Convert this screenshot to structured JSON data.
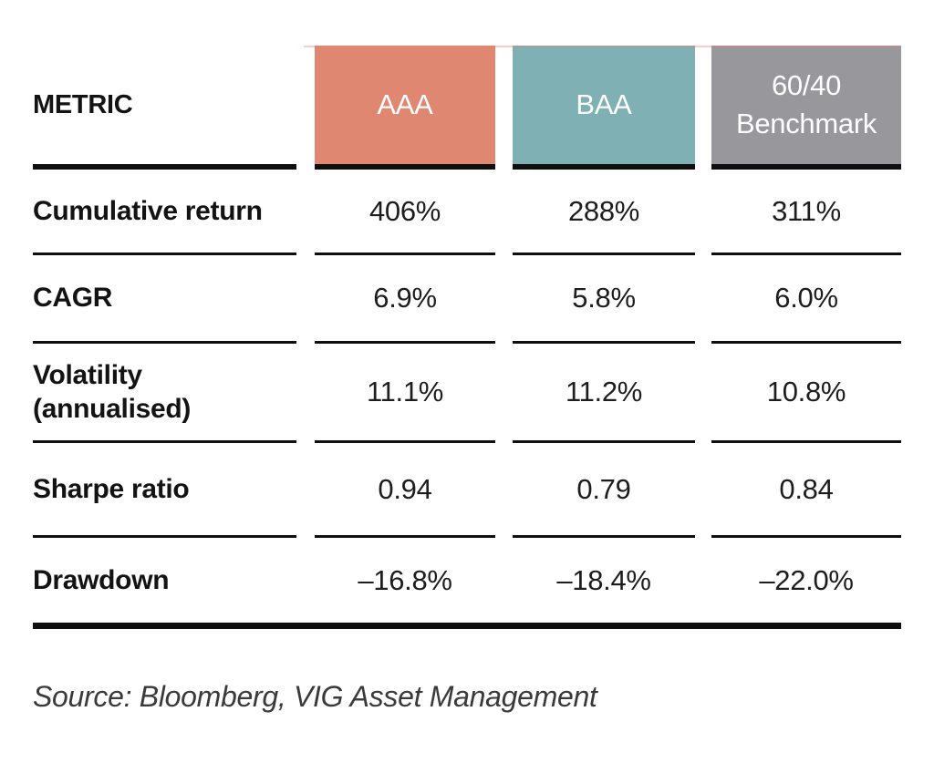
{
  "chart_data": {
    "type": "table",
    "columns": [
      "METRIC",
      "AAA",
      "BAA",
      "60/40 Benchmark"
    ],
    "rows": [
      [
        "Cumulative return",
        "406%",
        "288%",
        "311%"
      ],
      [
        "CAGR",
        "6.9%",
        "5.8%",
        "6.0%"
      ],
      [
        "Volatility (annualised)",
        "11.1%",
        "11.2%",
        "10.8%"
      ],
      [
        "Sharpe ratio",
        "0.94",
        "0.79",
        "0.84"
      ],
      [
        "Drawdown",
        "–16.8%",
        "–18.4%",
        "–22.0%"
      ]
    ],
    "header_colors": [
      "#e08771",
      "#7fb1b4",
      "#98979b"
    ],
    "source": "Source: Bloomberg, VIG Asset Management"
  },
  "header": {
    "metric_label": "METRIC",
    "columns": [
      {
        "label": "AAA",
        "color": "#e08771"
      },
      {
        "label": "BAA",
        "color": "#7fb1b4"
      },
      {
        "label": "60/40\nBenchmark",
        "color": "#98979b"
      }
    ]
  },
  "rows": [
    {
      "metric": "Cumulative return",
      "values": [
        "406%",
        "288%",
        "311%"
      ]
    },
    {
      "metric": "CAGR",
      "values": [
        "6.9%",
        "5.8%",
        "6.0%"
      ]
    },
    {
      "metric": "Volatility\n(annualised)",
      "values": [
        "11.1%",
        "11.2%",
        "10.8%"
      ]
    },
    {
      "metric": "Sharpe ratio",
      "values": [
        "0.94",
        "0.79",
        "0.84"
      ]
    },
    {
      "metric": "Drawdown",
      "values": [
        "–16.8%",
        "–18.4%",
        "–22.0%"
      ]
    }
  ],
  "colors": {
    "rule": "#0f0f0f"
  },
  "source_note": "Source: Bloomberg, VIG Asset Management"
}
